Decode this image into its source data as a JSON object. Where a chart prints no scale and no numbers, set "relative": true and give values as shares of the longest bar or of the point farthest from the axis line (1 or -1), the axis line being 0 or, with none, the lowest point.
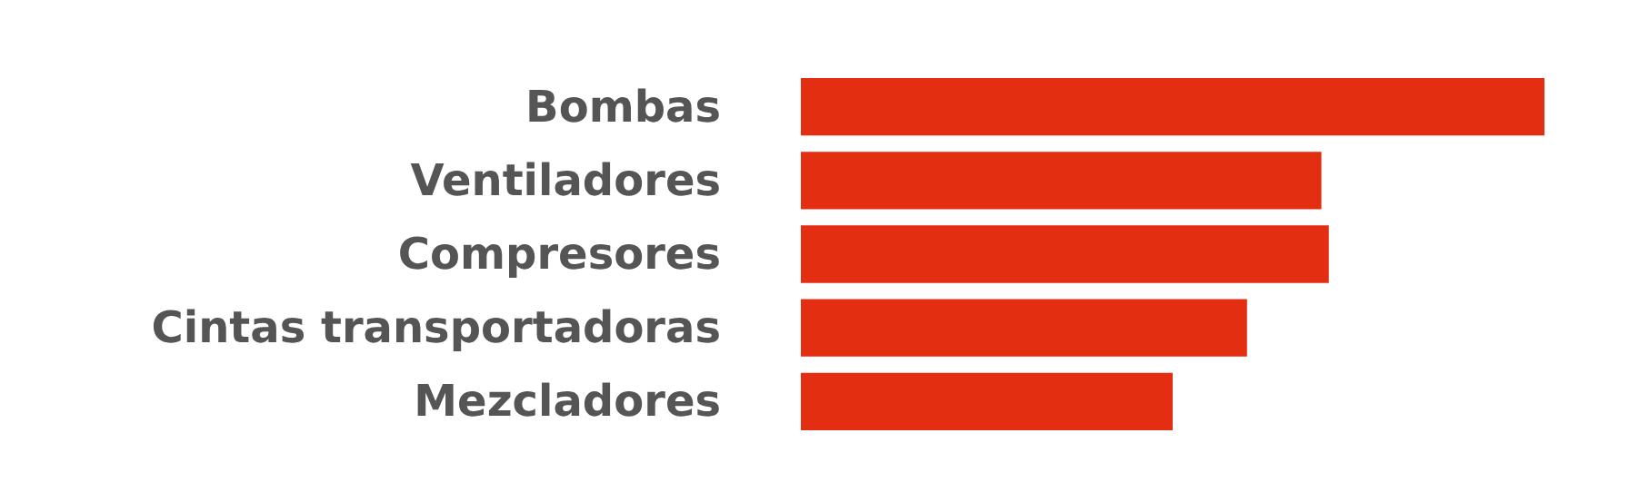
{
  "chart_data": {
    "type": "bar",
    "orientation": "horizontal",
    "relative": true,
    "grid": false,
    "categories": [
      "Bombas",
      "Ventiladores",
      "Compresores",
      "Cintas transportadoras",
      "Mezcladores"
    ],
    "values": [
      1,
      0.7,
      0.71,
      0.6,
      0.5
    ],
    "color": "#e32e12"
  }
}
